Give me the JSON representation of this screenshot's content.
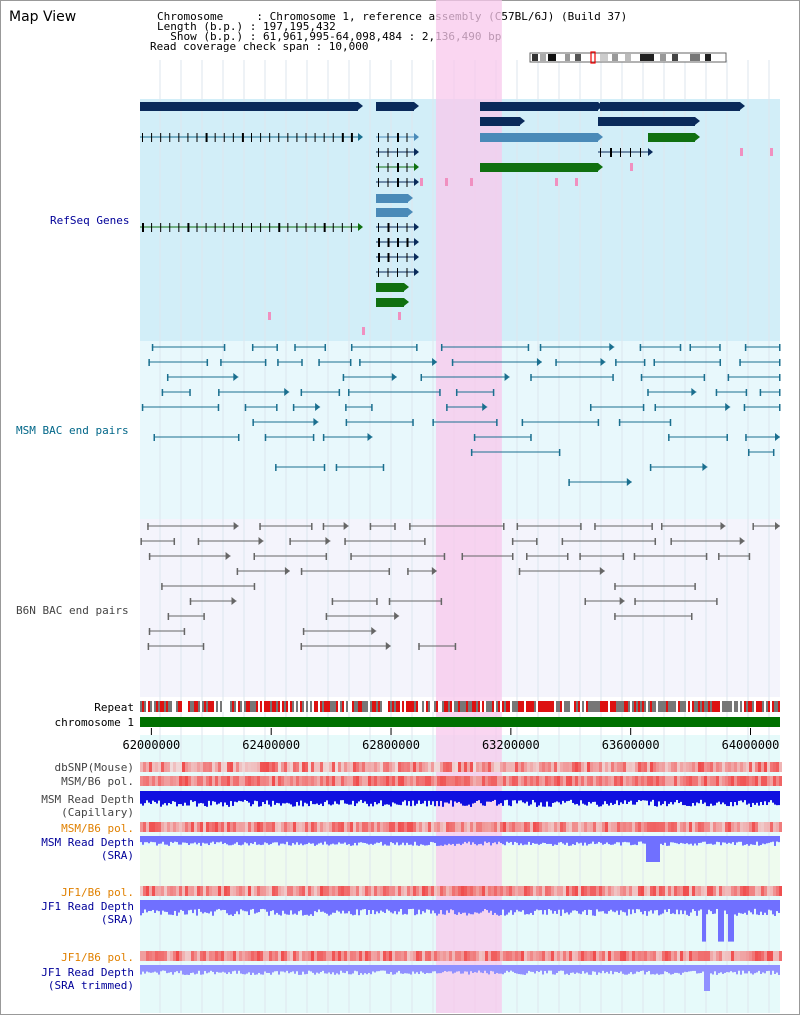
{
  "title": "Map View",
  "info": {
    "chromosome_line": "Chromosome     : Chromosome 1, reference assembly (C57BL/6J) (Build 37)",
    "length_line": "Length (b.p.) : 197,195,432",
    "show_line": "  Show (b.p.) : 61,961,995-64,098,484 : 2,136,490 bp",
    "coverage_line": "Read coverage check span : 10,000"
  },
  "tracks": {
    "refseq": "RefSeq Genes",
    "msm_bac": "MSM BAC end pairs",
    "b6n_bac": "B6N BAC end pairs",
    "repeat": "Repeat",
    "chromosome": "chromosome 1",
    "dbsnp": "dbSNP(Mouse)",
    "msm_b6_pol": "MSM/B6 pol.",
    "msm_depth_cap_1": "MSM Read Depth",
    "msm_depth_cap_2": "(Capillary)",
    "msm_b6_pol_sra": "MSM/B6 pol.",
    "msm_depth_sra_1": "MSM Read Depth",
    "msm_depth_sra_2": "(SRA)",
    "jf1_b6_pol": "JF1/B6 pol.",
    "jf1_depth_sra_1": "JF1 Read Depth",
    "jf1_depth_sra_2": "(SRA)",
    "jf1_b6_pol_2": "JF1/B6 pol.",
    "jf1_depth_trim_1": "JF1 Read Depth",
    "jf1_depth_trim_2": "(SRA trimmed)"
  },
  "axis": {
    "ticks": [
      "62000000",
      "62400000",
      "62800000",
      "63200000",
      "63600000",
      "64000000"
    ],
    "tick_values": [
      62000000,
      62400000,
      62800000,
      63200000,
      63600000,
      64000000
    ],
    "range": [
      61961995,
      64098484
    ]
  },
  "highlight_range": [
    62950000,
    63170000
  ],
  "colors": {
    "refseq_bg": "#d2eef8",
    "msm_bg": "#e8f8fc",
    "b6n_bg": "#f4f4fc",
    "highlight": "#f8c8ec",
    "gene_dark": "#0a2a5a",
    "gene_mid": "#4a8ab8",
    "gene_green": "#107010",
    "bac_teal": "#1a6f8f",
    "bac_gray": "#666666",
    "depth_cap": "#1010e0",
    "depth_sra": "#7070ff",
    "pol_red": "#f04040",
    "label_blue": "#000099",
    "label_teal": "#006688",
    "label_gray": "#444444",
    "label_orange": "#e08000",
    "chrom_green": "#007000"
  }
}
